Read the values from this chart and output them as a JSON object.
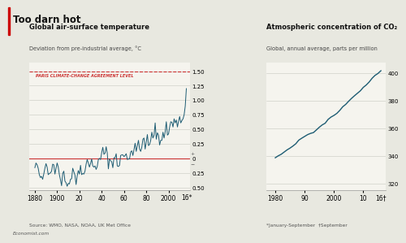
{
  "title": "Too darn hot",
  "left_title": "Global air-surface temperature",
  "left_subtitle": "Deviation from pre-industrial average, °C",
  "right_title": "Atmospheric concentration of CO₂",
  "right_subtitle": "Global, annual average, parts per million",
  "paris_label": "PARIS CLIMATE-CHANGE AGREEMENT LEVEL",
  "paris_level": 1.5,
  "source": "Source: WMO, NASA, NOAA, UK Met Office",
  "footnote": "*January-September  †September",
  "economist_credit": "Economist.com",
  "left_ylim": [
    -0.55,
    1.65
  ],
  "left_yticks": [
    -0.5,
    -0.25,
    0.0,
    0.25,
    0.5,
    0.75,
    1.0,
    1.25,
    1.5
  ],
  "left_ytick_labels": [
    "0.50",
    "0.25",
    "0",
    "0.25",
    "0.50",
    "0.75",
    "1.00",
    "1.25",
    "1.50"
  ],
  "left_xticks": [
    1880,
    1900,
    1920,
    1940,
    1960,
    1980,
    2000
  ],
  "left_xtick_labels": [
    "1880",
    "1900",
    "20",
    "40",
    "60",
    "80",
    "2000"
  ],
  "left_xextra_label": "16*",
  "right_ylim": [
    315,
    408
  ],
  "right_yticks": [
    320,
    340,
    360,
    380,
    400
  ],
  "right_xticks": [
    1980,
    1990,
    2000,
    2010
  ],
  "right_xtick_labels": [
    "1980",
    "90",
    "2000",
    "10"
  ],
  "right_xextra_label": "16†",
  "line_color": "#1d5c73",
  "paris_color": "#cc3333",
  "zero_line_color": "#cc3333",
  "bg_color": "#e8e8e0",
  "panel_bg": "#f5f4ee",
  "grid_color": "#c8c8c0",
  "temp_years": [
    1880,
    1881,
    1882,
    1883,
    1884,
    1885,
    1886,
    1887,
    1888,
    1889,
    1890,
    1891,
    1892,
    1893,
    1894,
    1895,
    1896,
    1897,
    1898,
    1899,
    1900,
    1901,
    1902,
    1903,
    1904,
    1905,
    1906,
    1907,
    1908,
    1909,
    1910,
    1911,
    1912,
    1913,
    1914,
    1915,
    1916,
    1917,
    1918,
    1919,
    1920,
    1921,
    1922,
    1923,
    1924,
    1925,
    1926,
    1927,
    1928,
    1929,
    1930,
    1931,
    1932,
    1933,
    1934,
    1935,
    1936,
    1937,
    1938,
    1939,
    1940,
    1941,
    1942,
    1943,
    1944,
    1945,
    1946,
    1947,
    1948,
    1949,
    1950,
    1951,
    1952,
    1953,
    1954,
    1955,
    1956,
    1957,
    1958,
    1959,
    1960,
    1961,
    1962,
    1963,
    1964,
    1965,
    1966,
    1967,
    1968,
    1969,
    1970,
    1971,
    1972,
    1973,
    1974,
    1975,
    1976,
    1977,
    1978,
    1979,
    1980,
    1981,
    1982,
    1983,
    1984,
    1985,
    1986,
    1987,
    1988,
    1989,
    1990,
    1991,
    1992,
    1993,
    1994,
    1995,
    1996,
    1997,
    1998,
    1999,
    2000,
    2001,
    2002,
    2003,
    2004,
    2005,
    2006,
    2007,
    2008,
    2009,
    2010,
    2011,
    2012,
    2013,
    2014,
    2015,
    2016
  ],
  "temp_values": [
    -0.16,
    -0.08,
    -0.11,
    -0.17,
    -0.28,
    -0.33,
    -0.31,
    -0.36,
    -0.27,
    -0.17,
    -0.09,
    -0.15,
    -0.28,
    -0.26,
    -0.25,
    -0.22,
    -0.1,
    -0.11,
    -0.27,
    -0.17,
    -0.08,
    -0.15,
    -0.28,
    -0.37,
    -0.47,
    -0.26,
    -0.22,
    -0.39,
    -0.42,
    -0.48,
    -0.43,
    -0.44,
    -0.36,
    -0.35,
    -0.17,
    -0.23,
    -0.29,
    -0.45,
    -0.3,
    -0.21,
    -0.27,
    -0.12,
    -0.28,
    -0.26,
    -0.27,
    -0.22,
    -0.1,
    -0.02,
    -0.08,
    -0.15,
    -0.09,
    -0.01,
    -0.13,
    -0.15,
    -0.13,
    -0.19,
    -0.14,
    -0.02,
    -0.0,
    -0.02,
    0.1,
    0.19,
    0.07,
    0.09,
    0.2,
    0.09,
    -0.18,
    -0.01,
    -0.04,
    -0.06,
    -0.16,
    0.01,
    0.01,
    0.08,
    -0.13,
    -0.14,
    -0.12,
    0.05,
    0.06,
    0.06,
    0.03,
    0.05,
    0.08,
    -0.02,
    -0.01,
    -0.01,
    0.11,
    0.13,
    0.05,
    0.15,
    0.26,
    0.12,
    0.22,
    0.31,
    0.16,
    0.12,
    0.19,
    0.33,
    0.35,
    0.16,
    0.28,
    0.41,
    0.22,
    0.24,
    0.31,
    0.45,
    0.35,
    0.4,
    0.61,
    0.33,
    0.44,
    0.4,
    0.23,
    0.31,
    0.31,
    0.45,
    0.35,
    0.46,
    0.63,
    0.4,
    0.42,
    0.54,
    0.63,
    0.62,
    0.54,
    0.68,
    0.61,
    0.66,
    0.54,
    0.64,
    0.72,
    0.61,
    0.65,
    0.68,
    0.75,
    0.9,
    1.2
  ],
  "co2_years": [
    1980,
    1981,
    1982,
    1983,
    1984,
    1985,
    1986,
    1987,
    1988,
    1989,
    1990,
    1991,
    1992,
    1993,
    1994,
    1995,
    1996,
    1997,
    1998,
    1999,
    2000,
    2001,
    2002,
    2003,
    2004,
    2005,
    2006,
    2007,
    2008,
    2009,
    2010,
    2011,
    2012,
    2013,
    2014,
    2015,
    2016
  ],
  "co2_values": [
    338.7,
    340.1,
    341.2,
    342.8,
    344.4,
    345.7,
    347.2,
    348.9,
    351.5,
    352.9,
    354.2,
    355.5,
    356.4,
    357.0,
    358.9,
    360.9,
    362.6,
    363.8,
    366.6,
    368.3,
    369.5,
    371.0,
    373.2,
    375.8,
    377.5,
    379.8,
    381.9,
    383.8,
    385.6,
    387.4,
    389.9,
    391.6,
    393.8,
    396.5,
    398.6,
    400.0,
    402.0
  ]
}
